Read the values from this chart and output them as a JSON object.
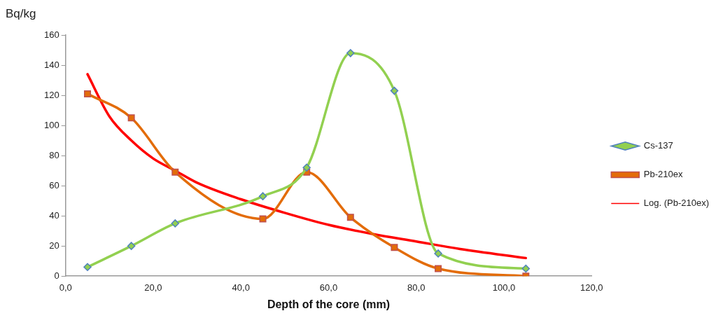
{
  "chart_data": {
    "type": "line",
    "xlabel": "Depth of the core (mm)",
    "ylabel": "Bq/kg",
    "xlim": [
      0,
      120
    ],
    "xticks": [
      {
        "value": 0,
        "label": "0,0"
      },
      {
        "value": 20,
        "label": "20,0"
      },
      {
        "value": 40,
        "label": "40,0"
      },
      {
        "value": 60,
        "label": "60,0"
      },
      {
        "value": 80,
        "label": "80,0"
      },
      {
        "value": 100,
        "label": "100,0"
      },
      {
        "value": 120,
        "label": "120,0"
      }
    ],
    "ylim": [
      0,
      160
    ],
    "yticks": [
      0,
      20,
      40,
      60,
      80,
      100,
      120,
      140,
      160
    ],
    "grid": false,
    "legend": "right",
    "series": [
      {
        "name": "Cs-137",
        "color": "#92d050",
        "marker": "diamond",
        "x": [
          5,
          15,
          25,
          45,
          55,
          65,
          75,
          85,
          105
        ],
        "values": [
          6,
          20,
          35,
          53,
          72,
          148,
          123,
          15,
          5
        ]
      },
      {
        "name": "Pb-210ex",
        "color": "#e36c09",
        "marker": "square",
        "x": [
          5,
          15,
          25,
          45,
          55,
          65,
          75,
          85,
          105
        ],
        "values": [
          121,
          105,
          69,
          38,
          69,
          39,
          19,
          5,
          0
        ]
      },
      {
        "name": "Log. (Pb-210ex)",
        "color": "#ff0000",
        "marker": "none",
        "x": [
          5,
          10,
          15,
          20,
          25,
          30,
          40,
          50,
          60,
          70,
          80,
          90,
          105
        ],
        "values": [
          134,
          106,
          90,
          78,
          70,
          62,
          51,
          42,
          34,
          28,
          23,
          18,
          12
        ]
      }
    ]
  }
}
